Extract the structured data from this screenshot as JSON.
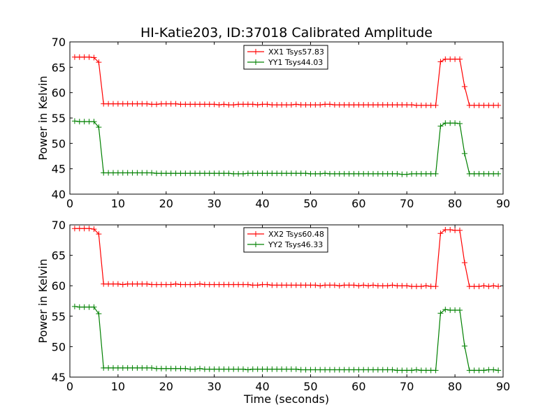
{
  "title": "HI-Katie203, ID:37018 Calibrated Amplitude",
  "xlabel": "Time (seconds)",
  "colors": {
    "xx": "#ff0000",
    "yy": "#008000"
  },
  "chart_data": [
    {
      "type": "line",
      "title": "HI-Katie203, ID:37018 Calibrated Amplitude",
      "xlabel": "",
      "ylabel": "Power in Kelvin",
      "xlim": [
        0,
        90
      ],
      "ylim": [
        40,
        70
      ],
      "xticks": [
        "0",
        "10",
        "20",
        "30",
        "40",
        "50",
        "60",
        "70",
        "80",
        "90"
      ],
      "yticks": [
        "40",
        "45",
        "50",
        "55",
        "60",
        "65",
        "70"
      ],
      "legend_position": "upper center",
      "grid": false,
      "x": [
        1,
        2,
        3,
        4,
        5,
        6,
        7,
        8,
        9,
        10,
        11,
        12,
        13,
        14,
        15,
        16,
        17,
        18,
        19,
        20,
        21,
        22,
        23,
        24,
        25,
        26,
        27,
        28,
        29,
        30,
        31,
        32,
        33,
        34,
        35,
        36,
        37,
        38,
        39,
        40,
        41,
        42,
        43,
        44,
        45,
        46,
        47,
        48,
        49,
        50,
        51,
        52,
        53,
        54,
        55,
        56,
        57,
        58,
        59,
        60,
        61,
        62,
        63,
        64,
        65,
        66,
        67,
        68,
        69,
        70,
        71,
        72,
        73,
        74,
        75,
        76,
        77,
        78,
        79,
        80,
        81,
        82,
        83,
        84,
        85,
        86,
        87,
        88,
        89
      ],
      "series": [
        {
          "name": "XX1 Tsys57.83",
          "color": "#ff0000",
          "values": [
            67.0,
            67.0,
            67.0,
            67.0,
            66.9,
            66.0,
            57.8,
            57.8,
            57.8,
            57.8,
            57.8,
            57.8,
            57.8,
            57.8,
            57.8,
            57.8,
            57.7,
            57.7,
            57.8,
            57.8,
            57.8,
            57.8,
            57.7,
            57.7,
            57.7,
            57.7,
            57.7,
            57.7,
            57.7,
            57.7,
            57.6,
            57.7,
            57.6,
            57.6,
            57.7,
            57.7,
            57.7,
            57.7,
            57.6,
            57.7,
            57.7,
            57.6,
            57.6,
            57.6,
            57.6,
            57.6,
            57.7,
            57.6,
            57.6,
            57.6,
            57.6,
            57.6,
            57.7,
            57.7,
            57.6,
            57.6,
            57.6,
            57.6,
            57.6,
            57.6,
            57.6,
            57.6,
            57.6,
            57.6,
            57.6,
            57.6,
            57.6,
            57.6,
            57.6,
            57.6,
            57.6,
            57.5,
            57.5,
            57.5,
            57.5,
            57.5,
            66.1,
            66.6,
            66.6,
            66.6,
            66.6,
            61.2,
            57.5,
            57.5,
            57.5,
            57.5,
            57.5,
            57.5,
            57.5
          ]
        },
        {
          "name": "YY1 Tsys44.03",
          "color": "#008000",
          "values": [
            54.4,
            54.3,
            54.3,
            54.3,
            54.3,
            53.2,
            44.2,
            44.2,
            44.2,
            44.2,
            44.2,
            44.2,
            44.2,
            44.2,
            44.2,
            44.2,
            44.2,
            44.1,
            44.1,
            44.1,
            44.1,
            44.1,
            44.1,
            44.1,
            44.1,
            44.1,
            44.1,
            44.1,
            44.1,
            44.1,
            44.1,
            44.1,
            44.1,
            44.0,
            44.0,
            44.0,
            44.1,
            44.1,
            44.1,
            44.1,
            44.1,
            44.1,
            44.1,
            44.1,
            44.1,
            44.1,
            44.1,
            44.1,
            44.1,
            44.0,
            44.0,
            44.0,
            44.1,
            44.0,
            44.0,
            44.0,
            44.0,
            44.0,
            44.0,
            44.0,
            44.0,
            44.0,
            44.0,
            44.0,
            44.0,
            44.0,
            44.0,
            44.0,
            43.9,
            43.9,
            44.0,
            44.0,
            44.0,
            44.0,
            44.0,
            44.0,
            53.4,
            54.0,
            54.0,
            54.0,
            53.9,
            48.0,
            44.0,
            44.0,
            44.0,
            44.0,
            44.0,
            44.0,
            44.0
          ]
        }
      ]
    },
    {
      "type": "line",
      "title": "",
      "xlabel": "Time (seconds)",
      "ylabel": "Power in Kelvin",
      "xlim": [
        0,
        90
      ],
      "ylim": [
        45,
        70
      ],
      "xticks": [
        "0",
        "10",
        "20",
        "30",
        "40",
        "50",
        "60",
        "70",
        "80",
        "90"
      ],
      "yticks": [
        "45",
        "50",
        "55",
        "60",
        "65",
        "70"
      ],
      "legend_position": "upper center",
      "grid": false,
      "x": [
        1,
        2,
        3,
        4,
        5,
        6,
        7,
        8,
        9,
        10,
        11,
        12,
        13,
        14,
        15,
        16,
        17,
        18,
        19,
        20,
        21,
        22,
        23,
        24,
        25,
        26,
        27,
        28,
        29,
        30,
        31,
        32,
        33,
        34,
        35,
        36,
        37,
        38,
        39,
        40,
        41,
        42,
        43,
        44,
        45,
        46,
        47,
        48,
        49,
        50,
        51,
        52,
        53,
        54,
        55,
        56,
        57,
        58,
        59,
        60,
        61,
        62,
        63,
        64,
        65,
        66,
        67,
        68,
        69,
        70,
        71,
        72,
        73,
        74,
        75,
        76,
        77,
        78,
        79,
        80,
        81,
        82,
        83,
        84,
        85,
        86,
        87,
        88,
        89
      ],
      "series": [
        {
          "name": "XX2 Tsys60.48",
          "color": "#ff0000",
          "values": [
            69.4,
            69.4,
            69.4,
            69.4,
            69.3,
            68.5,
            60.3,
            60.3,
            60.3,
            60.3,
            60.2,
            60.3,
            60.3,
            60.3,
            60.3,
            60.3,
            60.2,
            60.2,
            60.2,
            60.2,
            60.2,
            60.3,
            60.2,
            60.2,
            60.2,
            60.2,
            60.3,
            60.2,
            60.2,
            60.2,
            60.2,
            60.2,
            60.2,
            60.2,
            60.2,
            60.2,
            60.2,
            60.1,
            60.1,
            60.2,
            60.2,
            60.1,
            60.1,
            60.1,
            60.1,
            60.1,
            60.1,
            60.1,
            60.1,
            60.1,
            60.1,
            60.0,
            60.1,
            60.1,
            60.1,
            60.0,
            60.1,
            60.1,
            60.1,
            60.0,
            60.1,
            60.0,
            60.1,
            60.0,
            60.0,
            60.0,
            60.1,
            60.0,
            60.0,
            60.0,
            59.9,
            59.9,
            59.9,
            60.0,
            59.9,
            59.9,
            68.6,
            69.2,
            69.2,
            69.1,
            69.1,
            63.8,
            59.9,
            59.9,
            59.9,
            60.0,
            59.9,
            60.0,
            59.9
          ]
        },
        {
          "name": "YY2 Tsys46.33",
          "color": "#008000",
          "values": [
            56.6,
            56.5,
            56.5,
            56.5,
            56.5,
            55.4,
            46.5,
            46.5,
            46.5,
            46.5,
            46.5,
            46.5,
            46.5,
            46.5,
            46.5,
            46.5,
            46.5,
            46.4,
            46.4,
            46.4,
            46.4,
            46.4,
            46.4,
            46.4,
            46.3,
            46.3,
            46.4,
            46.3,
            46.3,
            46.3,
            46.3,
            46.3,
            46.3,
            46.3,
            46.3,
            46.3,
            46.2,
            46.3,
            46.3,
            46.3,
            46.3,
            46.3,
            46.3,
            46.3,
            46.3,
            46.3,
            46.3,
            46.2,
            46.2,
            46.2,
            46.2,
            46.2,
            46.2,
            46.2,
            46.2,
            46.2,
            46.2,
            46.2,
            46.2,
            46.2,
            46.2,
            46.2,
            46.2,
            46.2,
            46.2,
            46.2,
            46.2,
            46.1,
            46.1,
            46.1,
            46.1,
            46.2,
            46.1,
            46.1,
            46.1,
            46.1,
            55.5,
            56.1,
            56.0,
            56.0,
            56.0,
            50.1,
            46.1,
            46.1,
            46.1,
            46.1,
            46.2,
            46.2,
            46.1
          ]
        }
      ]
    }
  ]
}
